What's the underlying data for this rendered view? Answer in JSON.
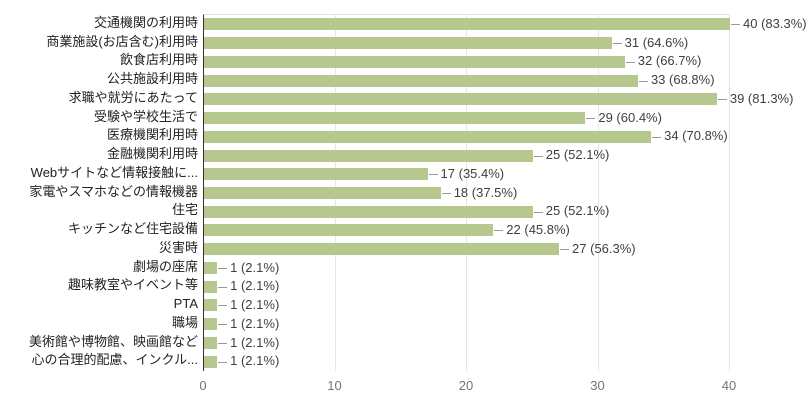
{
  "chart_data": {
    "type": "bar",
    "orientation": "horizontal",
    "title": "",
    "xlabel": "",
    "ylabel": "",
    "xlim": [
      0,
      40
    ],
    "x_ticks": [
      "0",
      "10",
      "20",
      "30",
      "40"
    ],
    "grid": true,
    "categories": [
      "交通機関の利用時",
      "商業施設(お店含む)利用時",
      "飲食店利用時",
      "公共施設利用時",
      "求職や就労にあたって",
      "受験や学校生活で",
      "医療機関利用時",
      "金融機関利用時",
      "Webサイトなど情報接触に...",
      "家電やスマホなどの情報機器",
      "住宅",
      "キッチンなど住宅設備",
      "災害時",
      "劇場の座席",
      "趣味教室やイベント等",
      "PTA",
      "職場",
      "美術館や博物館、映画館など",
      "心の合理的配慮、インクル..."
    ],
    "values": [
      40,
      31,
      32,
      33,
      39,
      29,
      34,
      25,
      17,
      18,
      25,
      22,
      27,
      1,
      1,
      1,
      1,
      1,
      1
    ],
    "annotations": [
      "40 (83.3%)",
      "31 (64.6%)",
      "32 (66.7%)",
      "33 (68.8%)",
      "39 (81.3%)",
      "29 (60.4%)",
      "34 (70.8%)",
      "25 (52.1%)",
      "17 (35.4%)",
      "18 (37.5%)",
      "25 (52.1%)",
      "22 (45.8%)",
      "27 (56.3%)",
      "1 (2.1%)",
      "1 (2.1%)",
      "1 (2.1%)",
      "1 (2.1%)",
      "1 (2.1%)",
      "1 (2.1%)"
    ],
    "colors": {
      "bar": "#b6c88d",
      "annotation_text": "#404040",
      "category_text": "#222222",
      "axis_tick_text": "#757575",
      "gridline": "#e6e6e6",
      "baseline": "#333333",
      "stem": "#9a9a9a",
      "background": "#ffffff"
    },
    "legend_position": "none"
  }
}
